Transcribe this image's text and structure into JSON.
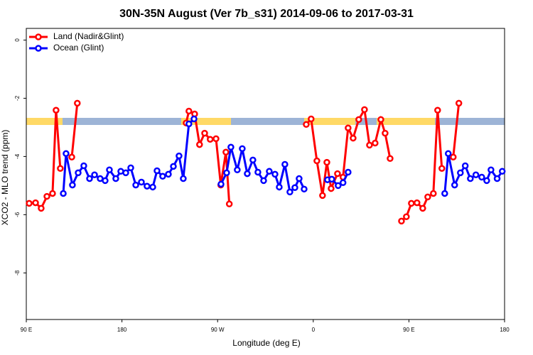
{
  "chart_data": {
    "type": "line",
    "title": "30N-35N August (Ver 7b_s31)   2014-09-06 to 2017-03-31",
    "x_label": "Longitude (deg E)",
    "y_label": "XCO2 - MLO trend (ppm)",
    "xlim": [
      90,
      540
    ],
    "ylim": [
      -9.6,
      0.4
    ],
    "xticks": [
      {
        "value": 90,
        "label": "90 E"
      },
      180,
      {
        "value": 270,
        "label": "90 W"
      },
      {
        "value": 360,
        "label": "0"
      },
      {
        "value": 450,
        "label": "90 E"
      },
      {
        "value": 540,
        "label": "180"
      }
    ],
    "yticks": [
      0,
      -2,
      -4,
      -6,
      -8
    ],
    "legend": "top-left",
    "series": [
      {
        "name": "Land (Nadir&Glint)",
        "color": "#ff0000",
        "x": [
          92.7,
          98.7,
          104,
          109.4,
          114.7,
          118,
          122,
          null,
          132.8,
          138,
          null,
          240.4,
          243,
          248.4,
          253,
          257.8,
          263,
          268.5,
          273,
          277.8,
          281,
          null,
          353.4,
          358,
          363.4,
          368.7,
          372.8,
          376.8,
          382.8,
          388,
          392.8,
          397.5,
          402.8,
          408.2,
          412.9,
          418.2,
          423.6,
          427.6,
          432.3,
          null,
          443,
          447.6,
          452.3,
          457.6,
          463,
          467.7,
          473,
          477,
          481,
          null,
          491.7,
          497
        ],
        "values": [
          -5.61,
          -5.59,
          -5.78,
          -5.37,
          -5.27,
          -2.41,
          -4.41,
          null,
          -4.02,
          -2.17,
          null,
          -2.85,
          -2.44,
          -2.54,
          -3.59,
          -3.2,
          -3.41,
          -3.39,
          -4.98,
          -3.85,
          -5.63,
          null,
          -2.9,
          -2.71,
          -4.15,
          -5.34,
          -4.2,
          -5.1,
          -4.59,
          -4.71,
          -3.02,
          -3.37,
          -2.73,
          -2.39,
          -3.61,
          -3.54,
          -2.73,
          -3.2,
          -4.07,
          null,
          -6.22,
          -6.07,
          -5.61,
          -5.59,
          -5.78,
          -5.39,
          -5.27,
          -2.41,
          -4.41,
          null,
          -4.02,
          -2.17
        ]
      },
      {
        "name": "Ocean (Glint)",
        "color": "#0000ff",
        "x": [
          124.8,
          127.4,
          133.4,
          138.8,
          144.1,
          149.5,
          154.2,
          159.5,
          164.2,
          168.2,
          174.2,
          178.9,
          183.6,
          188.3,
          193,
          198.3,
          203.6,
          209,
          213,
          218.3,
          223.7,
          228.4,
          233.7,
          237.7,
          243,
          247.8,
          null,
          273.2,
          278.5,
          282.5,
          288.5,
          293.2,
          297.9,
          303.2,
          307.9,
          313.3,
          318.6,
          324,
          328,
          333.3,
          338,
          342.7,
          346.7,
          351.4,
          null,
          373.4,
          377.4,
          383.4,
          388,
          392.8,
          null,
          483.7,
          487,
          493,
          498.4,
          503,
          507.8,
          513,
          518.5,
          523.2,
          527.2,
          533,
          537.8
        ],
        "values": [
          -5.27,
          -3.9,
          -4.98,
          -4.56,
          -4.32,
          -4.76,
          -4.63,
          -4.76,
          -4.83,
          -4.46,
          -4.76,
          -4.51,
          -4.56,
          -4.39,
          -4.98,
          -4.88,
          -5.02,
          -5.05,
          -4.49,
          -4.68,
          -4.61,
          -4.34,
          -3.98,
          -4.76,
          -2.88,
          -2.71,
          null,
          -4.95,
          -4.56,
          -3.68,
          -4.46,
          -3.73,
          -4.59,
          -4.12,
          -4.54,
          -4.83,
          -4.51,
          -4.61,
          -5.05,
          -4.27,
          -5.22,
          -5.07,
          -4.76,
          -5.12,
          null,
          -4.8,
          -4.78,
          -5.0,
          -4.9,
          -4.54,
          null,
          -5.27,
          -3.9,
          -4.98,
          -4.56,
          -4.32,
          -4.76,
          -4.63,
          -4.71,
          -4.83,
          -4.46,
          -4.76,
          -4.51
        ]
      }
    ]
  }
}
